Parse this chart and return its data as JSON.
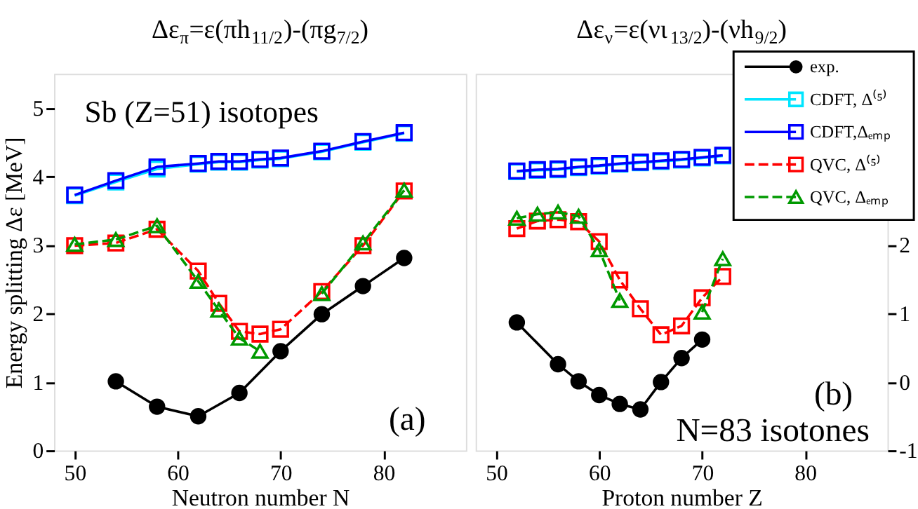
{
  "chart_data": [
    {
      "type": "line",
      "title": "Δε$_{π}$=ε(πh$_{11/2}$)-(πg$_{7/2}$)",
      "xlabel": "Neutron  number  N",
      "ylabel": "Energy splitting Δε [MeV]",
      "xlim": [
        48,
        88
      ],
      "ylim": [
        0,
        5.5
      ],
      "xticks": [
        50,
        60,
        70,
        80
      ],
      "yticks": [
        0,
        1,
        2,
        3,
        4,
        5
      ],
      "grid": false,
      "legend": false,
      "annotations": [
        "Sb (Z=51) isotopes",
        "(a)"
      ],
      "series": [
        {
          "color": "#00e5ff",
          "marker": "square",
          "line_style": "solid",
          "x": [
            50,
            54,
            58,
            62,
            64,
            66,
            68,
            70,
            74,
            78,
            82
          ],
          "values": [
            3.72,
            3.92,
            4.11,
            4.18,
            4.21,
            4.21,
            4.24,
            4.26,
            4.36,
            4.5,
            4.63
          ]
        },
        {
          "color": "#0000ff",
          "marker": "square",
          "line_style": "solid",
          "x": [
            50,
            54,
            58,
            62,
            64,
            66,
            68,
            70,
            74,
            78,
            82
          ],
          "values": [
            3.73,
            3.94,
            4.14,
            4.19,
            4.22,
            4.22,
            4.25,
            4.27,
            4.37,
            4.51,
            4.64
          ]
        },
        {
          "color": "#ff0000",
          "marker": "square",
          "line_style": "dashed",
          "x": [
            50,
            54,
            58,
            62,
            64,
            66,
            68,
            70,
            74,
            78,
            82
          ],
          "values": [
            2.99,
            3.03,
            3.23,
            2.62,
            2.15,
            1.74,
            1.7,
            1.77,
            2.32,
            2.99,
            3.79
          ]
        },
        {
          "color": "#009900",
          "marker": "triangle",
          "line_style": "dashed",
          "x": [
            50,
            54,
            58,
            62,
            64,
            66,
            68,
            70,
            74,
            78,
            82
          ],
          "values": [
            3.01,
            3.08,
            3.28,
            2.47,
            2.05,
            1.64,
            1.45,
            null,
            2.29,
            3.03,
            3.8
          ]
        },
        {
          "color": "#000000",
          "marker": "circle",
          "line_style": "solid",
          "x": [
            54,
            58,
            62,
            66,
            70,
            74,
            78,
            82
          ],
          "values": [
            1.01,
            0.64,
            0.5,
            0.84,
            1.45,
            1.99,
            2.4,
            2.81
          ]
        }
      ]
    },
    {
      "type": "line",
      "title": "Δε$_{ν}$=ε(νι$_{13/2}$)-(νh$_{9/2}$)",
      "xlabel": "Proton  number  Z",
      "xlim": [
        48,
        88
      ],
      "ylim": [
        -1,
        4.5
      ],
      "xticks": [
        50,
        60,
        70,
        80
      ],
      "yticks": [
        -1,
        0,
        1,
        2
      ],
      "grid": false,
      "legend": "top right",
      "annotations": [
        "(b)",
        "N=83 isotones"
      ],
      "series": [
        {
          "name": "CDFT, Δ⁽⁵⁾",
          "color": "#00e5ff",
          "marker": "square",
          "line_style": "solid",
          "x": [
            52,
            54,
            56,
            58,
            60,
            62,
            64,
            66,
            68,
            70,
            72
          ],
          "values": [
            3.07,
            3.09,
            3.1,
            3.13,
            3.15,
            3.18,
            3.2,
            3.22,
            3.24,
            3.27,
            3.3
          ]
        },
        {
          "name": "CDFT,Δₑₘₚ",
          "color": "#0000ff",
          "marker": "square",
          "line_style": "solid",
          "x": [
            52,
            54,
            56,
            58,
            60,
            62,
            64,
            66,
            68,
            70,
            72
          ],
          "values": [
            3.08,
            3.1,
            3.11,
            3.14,
            3.16,
            3.19,
            3.21,
            3.23,
            3.25,
            3.28,
            3.31
          ]
        },
        {
          "name": "QVC, Δ⁽⁵⁾",
          "color": "#ff0000",
          "marker": "square",
          "line_style": "dashed",
          "x": [
            52,
            54,
            56,
            58,
            60,
            62,
            64,
            66,
            68,
            70,
            72
          ],
          "values": [
            2.24,
            2.35,
            2.37,
            2.34,
            2.05,
            1.49,
            1.07,
            0.69,
            0.82,
            1.23,
            1.54
          ]
        },
        {
          "name": "QVC, Δₑₘₚ",
          "color": "#009900",
          "marker": "triangle",
          "line_style": "dashed",
          "x": [
            52,
            54,
            56,
            58,
            60,
            62,
            64,
            66,
            68,
            70,
            72
          ],
          "values": [
            2.39,
            2.45,
            2.48,
            2.42,
            1.93,
            1.19,
            null,
            null,
            null,
            1.02,
            1.8
          ]
        },
        {
          "name": "exp.",
          "color": "#000000",
          "marker": "circle",
          "line_style": "solid",
          "x": [
            52,
            56,
            58,
            60,
            62,
            64,
            66,
            68,
            70
          ],
          "values": [
            0.87,
            0.26,
            0.01,
            -0.19,
            -0.32,
            -0.4,
            0.0,
            0.35,
            0.62
          ]
        }
      ]
    }
  ]
}
